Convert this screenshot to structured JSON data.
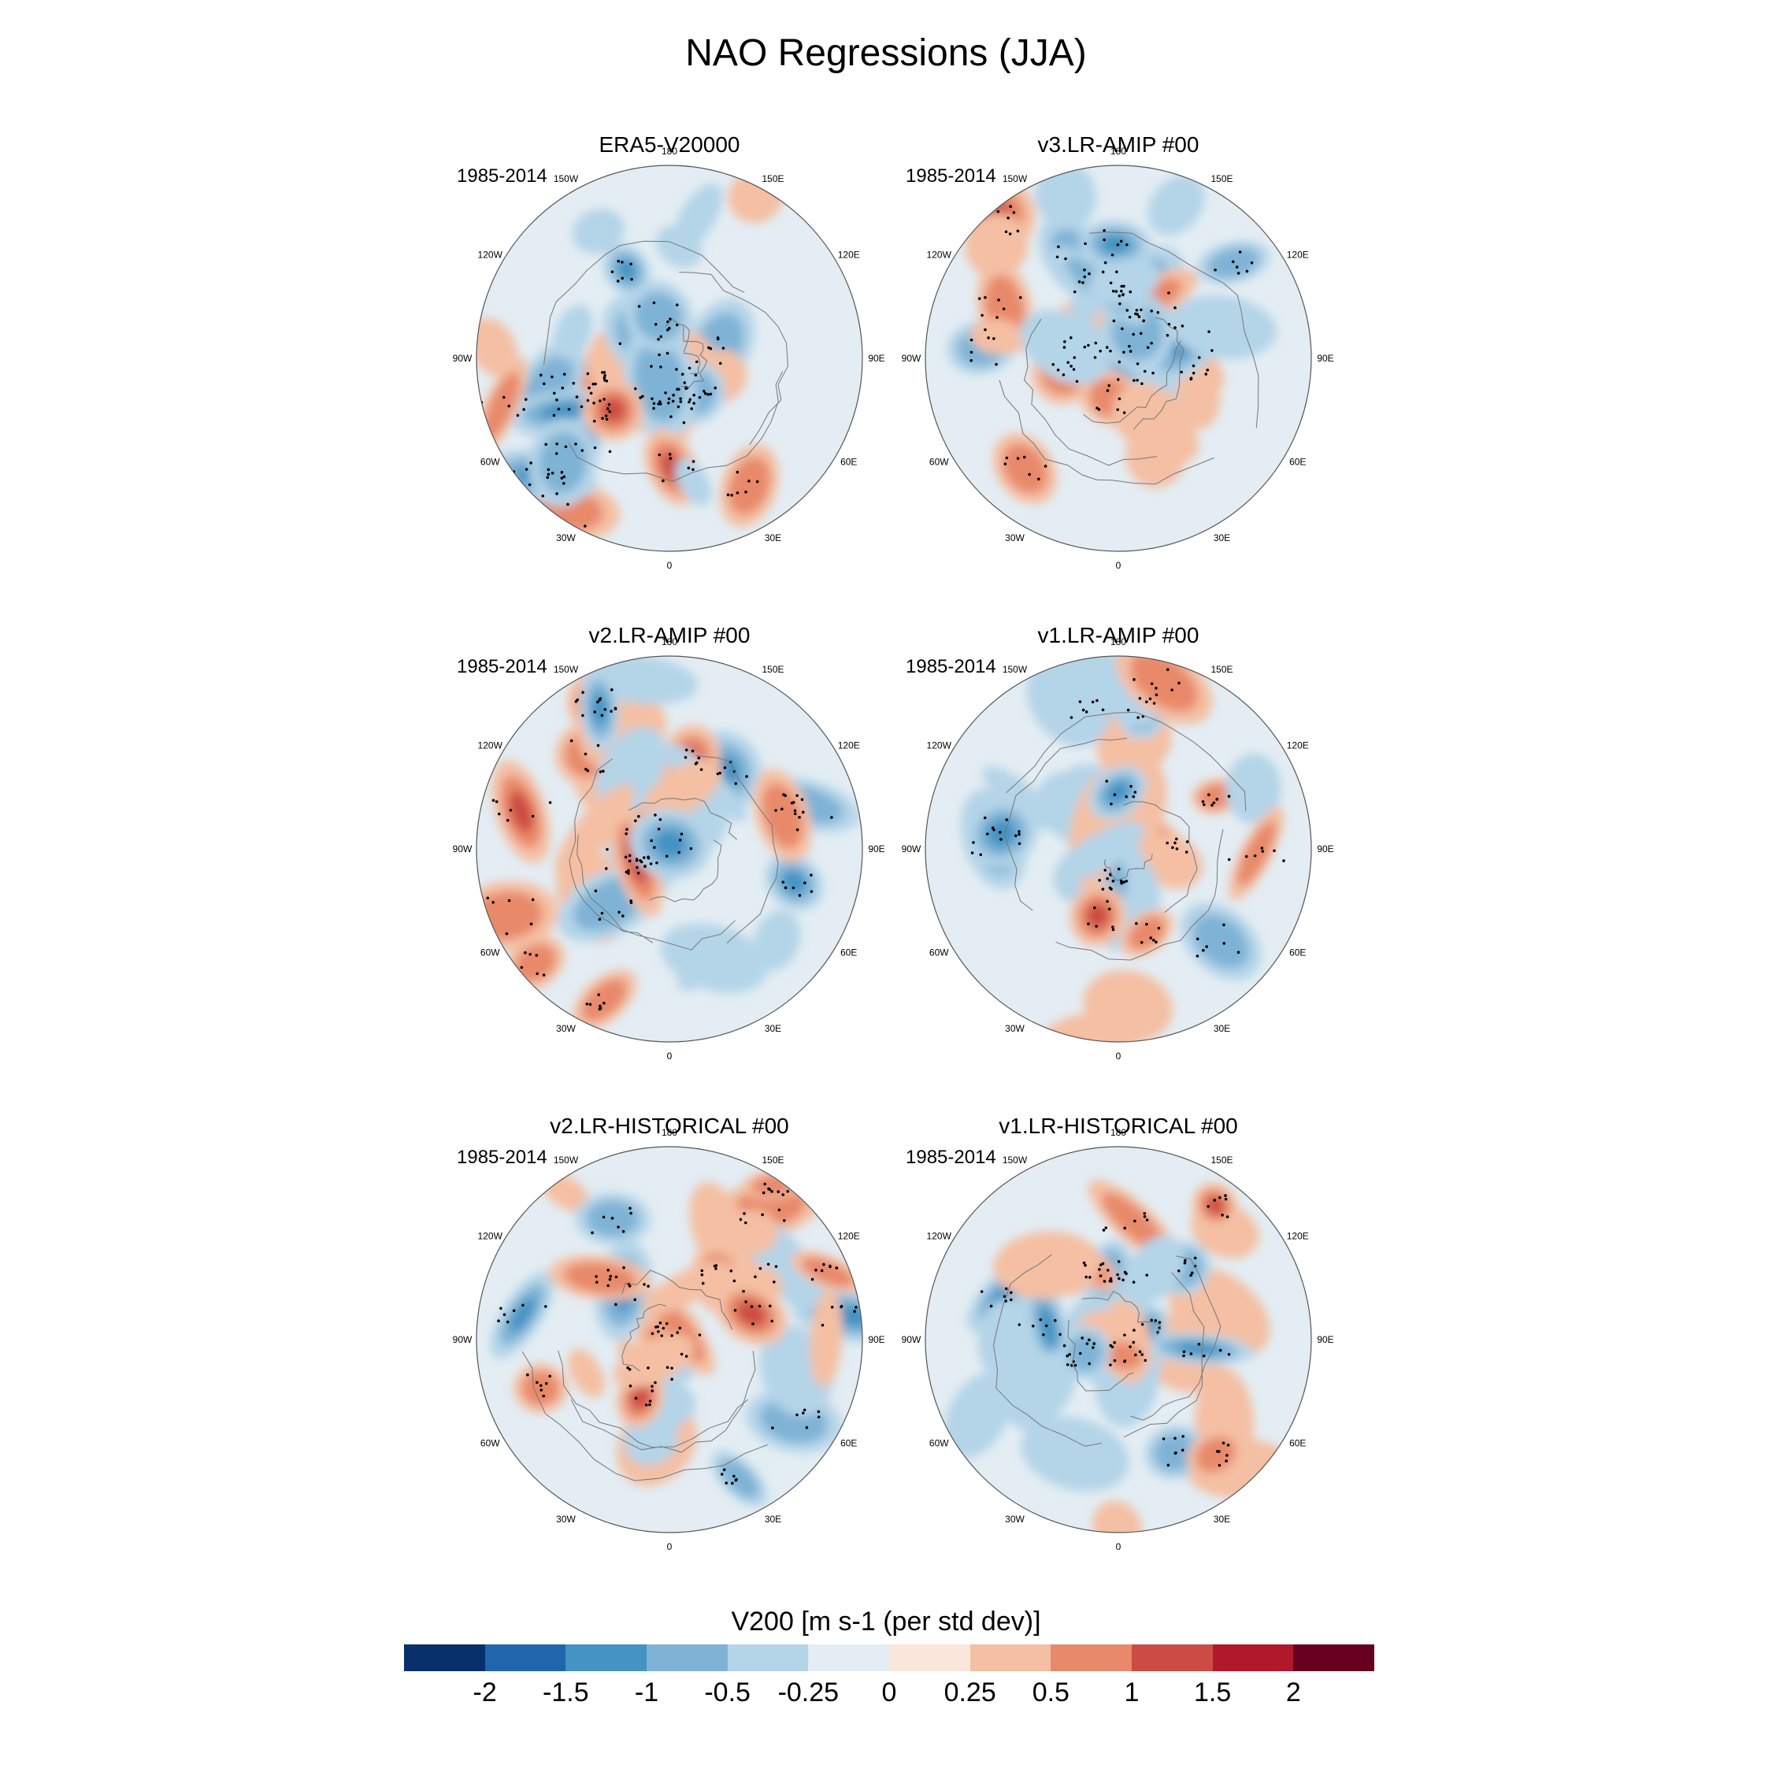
{
  "title": "NAO Regressions (JJA)",
  "panels": [
    {
      "title": "ERA5-V20000",
      "period": "1985-2014"
    },
    {
      "title": "v3.LR-AMIP  #00",
      "period": "1985-2014"
    },
    {
      "title": "v2.LR-AMIP  #00",
      "period": "1985-2014"
    },
    {
      "title": "v1.LR-AMIP  #00",
      "period": "1985-2014"
    },
    {
      "title": "v2.LR-HISTORICAL  #00",
      "period": "1985-2014"
    },
    {
      "title": "v1.LR-HISTORICAL  #00",
      "period": "1985-2014"
    }
  ],
  "longitude_labels": [
    "180",
    "150E",
    "120E",
    "90E",
    "60E",
    "30E",
    "0",
    "30W",
    "60W",
    "90W",
    "120W",
    "150W"
  ],
  "colorbar": {
    "title": "V200 [m s-1 (per std dev)]",
    "ticks": [
      "-2",
      "-1.5",
      "-1",
      "-0.5",
      "-0.25",
      "0",
      "0.25",
      "0.5",
      "1",
      "1.5",
      "2"
    ],
    "colors": [
      "#08306b",
      "#2166ac",
      "#4393c3",
      "#7fb3d5",
      "#b4d4e8",
      "#e3edf3",
      "#fbe6dc",
      "#f4bfa3",
      "#e8896b",
      "#cc4c43",
      "#b2182b",
      "#67001f"
    ]
  }
}
